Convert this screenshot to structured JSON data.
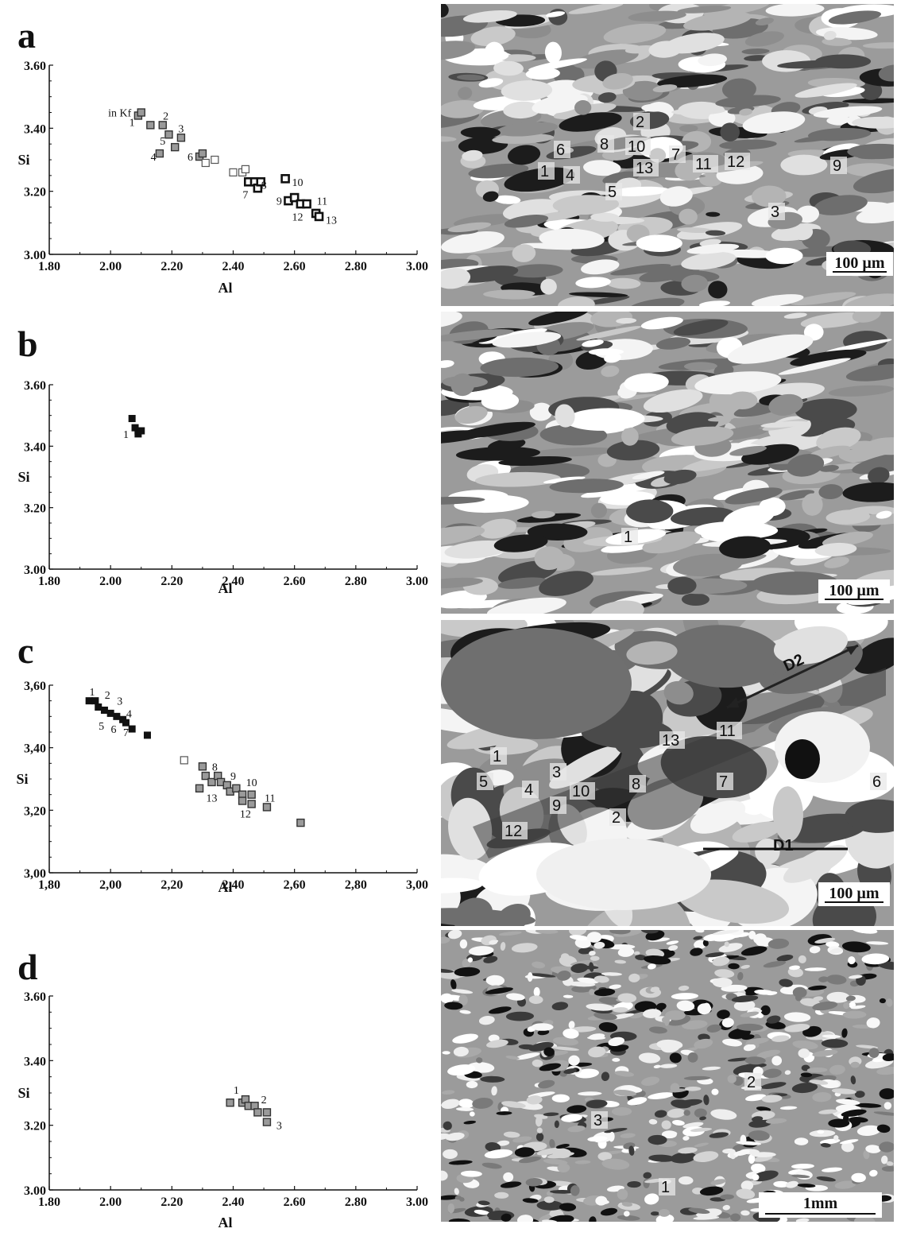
{
  "chart_data": [
    {
      "panel": "a",
      "type": "scatter",
      "xlabel": "Al",
      "ylabel": "Si",
      "xlim": [
        1.8,
        3.0
      ],
      "ylim": [
        3.0,
        3.6
      ],
      "x_ticks": [
        "1.80",
        "2.00",
        "2.20",
        "2.40",
        "2.60",
        "2.80",
        "3.00"
      ],
      "y_ticks": [
        "3.00",
        "3.20",
        "3.40",
        "3.60"
      ],
      "annotation": "in Kf",
      "points": [
        {
          "x": 2.09,
          "y": 3.44,
          "style": "grey"
        },
        {
          "x": 2.1,
          "y": 3.45,
          "style": "grey"
        },
        {
          "x": 2.13,
          "y": 3.41,
          "style": "grey"
        },
        {
          "x": 2.17,
          "y": 3.41,
          "style": "grey"
        },
        {
          "x": 2.19,
          "y": 3.38,
          "style": "grey"
        },
        {
          "x": 2.16,
          "y": 3.32,
          "style": "grey"
        },
        {
          "x": 2.21,
          "y": 3.34,
          "style": "grey"
        },
        {
          "x": 2.23,
          "y": 3.37,
          "style": "grey"
        },
        {
          "x": 2.29,
          "y": 3.31,
          "style": "grey"
        },
        {
          "x": 2.3,
          "y": 3.32,
          "style": "grey"
        },
        {
          "x": 2.31,
          "y": 3.29,
          "style": "open"
        },
        {
          "x": 2.34,
          "y": 3.3,
          "style": "open"
        },
        {
          "x": 2.4,
          "y": 3.26,
          "style": "open"
        },
        {
          "x": 2.43,
          "y": 3.26,
          "style": "open"
        },
        {
          "x": 2.44,
          "y": 3.27,
          "style": "open"
        },
        {
          "x": 2.45,
          "y": 3.23,
          "style": "heavy"
        },
        {
          "x": 2.47,
          "y": 3.23,
          "style": "heavy"
        },
        {
          "x": 2.48,
          "y": 3.21,
          "style": "heavy"
        },
        {
          "x": 2.49,
          "y": 3.23,
          "style": "heavy"
        },
        {
          "x": 2.57,
          "y": 3.24,
          "style": "heavy"
        },
        {
          "x": 2.58,
          "y": 3.17,
          "style": "heavy"
        },
        {
          "x": 2.6,
          "y": 3.18,
          "style": "heavy"
        },
        {
          "x": 2.62,
          "y": 3.16,
          "style": "heavy"
        },
        {
          "x": 2.64,
          "y": 3.16,
          "style": "heavy"
        },
        {
          "x": 2.67,
          "y": 3.13,
          "style": "heavy"
        },
        {
          "x": 2.68,
          "y": 3.12,
          "style": "heavy"
        }
      ],
      "point_labels": [
        {
          "text": "1",
          "x": 2.07,
          "y": 3.42
        },
        {
          "text": "2",
          "x": 2.18,
          "y": 3.44
        },
        {
          "text": "3",
          "x": 2.23,
          "y": 3.4
        },
        {
          "text": "5",
          "x": 2.17,
          "y": 3.36
        },
        {
          "text": "4",
          "x": 2.14,
          "y": 3.31
        },
        {
          "text": "6",
          "x": 2.26,
          "y": 3.31
        },
        {
          "text": "7",
          "x": 2.44,
          "y": 3.19
        },
        {
          "text": "8",
          "x": 2.5,
          "y": 3.22
        },
        {
          "text": "9",
          "x": 2.55,
          "y": 3.17
        },
        {
          "text": "10",
          "x": 2.61,
          "y": 3.23
        },
        {
          "text": "11",
          "x": 2.69,
          "y": 3.17
        },
        {
          "text": "12",
          "x": 2.61,
          "y": 3.12
        },
        {
          "text": "13",
          "x": 2.72,
          "y": 3.11
        }
      ]
    },
    {
      "panel": "b",
      "type": "scatter",
      "xlabel": "Al",
      "ylabel": "Si",
      "xlim": [
        1.8,
        3.0
      ],
      "ylim": [
        3.0,
        3.6
      ],
      "x_ticks": [
        "1.80",
        "2.00",
        "2.20",
        "2.40",
        "2.60",
        "2.80",
        "3.00"
      ],
      "y_ticks": [
        "3.00",
        "3.20",
        "3.40",
        "3.60"
      ],
      "points": [
        {
          "x": 2.07,
          "y": 3.49,
          "style": "solid"
        },
        {
          "x": 2.08,
          "y": 3.46,
          "style": "solid"
        },
        {
          "x": 2.09,
          "y": 3.45,
          "style": "solid"
        },
        {
          "x": 2.09,
          "y": 3.44,
          "style": "solid"
        },
        {
          "x": 2.1,
          "y": 3.45,
          "style": "solid"
        }
      ],
      "point_labels": [
        {
          "text": "1",
          "x": 2.05,
          "y": 3.44
        }
      ]
    },
    {
      "panel": "c",
      "type": "scatter",
      "xlabel": "Al",
      "ylabel": "Si",
      "xlim": [
        1.8,
        3.0
      ],
      "ylim": [
        3.0,
        3.6
      ],
      "x_ticks": [
        "1,80",
        "2,00",
        "2,20",
        "2,40",
        "2,60",
        "2,80",
        "3,00"
      ],
      "y_ticks": [
        "3,00",
        "3,20",
        "3,40",
        "3,60"
      ],
      "points": [
        {
          "x": 1.93,
          "y": 3.55,
          "style": "solid"
        },
        {
          "x": 1.95,
          "y": 3.55,
          "style": "solid"
        },
        {
          "x": 1.96,
          "y": 3.53,
          "style": "solid"
        },
        {
          "x": 1.98,
          "y": 3.52,
          "style": "solid"
        },
        {
          "x": 2.0,
          "y": 3.51,
          "style": "solid"
        },
        {
          "x": 2.02,
          "y": 3.5,
          "style": "solid"
        },
        {
          "x": 2.04,
          "y": 3.49,
          "style": "solid"
        },
        {
          "x": 2.05,
          "y": 3.48,
          "style": "solid"
        },
        {
          "x": 2.07,
          "y": 3.46,
          "style": "solid"
        },
        {
          "x": 2.12,
          "y": 3.44,
          "style": "solid"
        },
        {
          "x": 2.24,
          "y": 3.36,
          "style": "open"
        },
        {
          "x": 2.3,
          "y": 3.34,
          "style": "grey"
        },
        {
          "x": 2.31,
          "y": 3.31,
          "style": "grey"
        },
        {
          "x": 2.33,
          "y": 3.29,
          "style": "grey"
        },
        {
          "x": 2.35,
          "y": 3.31,
          "style": "grey"
        },
        {
          "x": 2.36,
          "y": 3.29,
          "style": "grey"
        },
        {
          "x": 2.38,
          "y": 3.28,
          "style": "grey"
        },
        {
          "x": 2.39,
          "y": 3.26,
          "style": "grey"
        },
        {
          "x": 2.41,
          "y": 3.27,
          "style": "grey"
        },
        {
          "x": 2.43,
          "y": 3.25,
          "style": "grey"
        },
        {
          "x": 2.43,
          "y": 3.23,
          "style": "grey"
        },
        {
          "x": 2.46,
          "y": 3.25,
          "style": "grey"
        },
        {
          "x": 2.46,
          "y": 3.22,
          "style": "grey"
        },
        {
          "x": 2.29,
          "y": 3.27,
          "style": "grey"
        },
        {
          "x": 2.51,
          "y": 3.21,
          "style": "grey"
        },
        {
          "x": 2.62,
          "y": 3.16,
          "style": "grey"
        }
      ],
      "point_labels": [
        {
          "text": "1",
          "x": 1.94,
          "y": 3.58
        },
        {
          "text": "2",
          "x": 1.99,
          "y": 3.57
        },
        {
          "text": "3",
          "x": 2.03,
          "y": 3.55
        },
        {
          "text": "4",
          "x": 2.06,
          "y": 3.51
        },
        {
          "text": "5",
          "x": 1.97,
          "y": 3.47
        },
        {
          "text": "6",
          "x": 2.01,
          "y": 3.46
        },
        {
          "text": "7",
          "x": 2.05,
          "y": 3.45
        },
        {
          "text": "8",
          "x": 2.34,
          "y": 3.34
        },
        {
          "text": "9",
          "x": 2.4,
          "y": 3.31
        },
        {
          "text": "10",
          "x": 2.46,
          "y": 3.29
        },
        {
          "text": "11",
          "x": 2.52,
          "y": 3.24
        },
        {
          "text": "12",
          "x": 2.44,
          "y": 3.19
        },
        {
          "text": "13",
          "x": 2.33,
          "y": 3.24
        }
      ]
    },
    {
      "panel": "d",
      "type": "scatter",
      "xlabel": "Al",
      "ylabel": "Si",
      "xlim": [
        1.8,
        3.0
      ],
      "ylim": [
        3.0,
        3.6
      ],
      "x_ticks": [
        "1.80",
        "2.00",
        "2.20",
        "2.40",
        "2.60",
        "2.80",
        "3.00"
      ],
      "y_ticks": [
        "3.00",
        "3.20",
        "3.40",
        "3.60"
      ],
      "points": [
        {
          "x": 2.39,
          "y": 3.27,
          "style": "grey"
        },
        {
          "x": 2.43,
          "y": 3.27,
          "style": "grey"
        },
        {
          "x": 2.44,
          "y": 3.28,
          "style": "grey"
        },
        {
          "x": 2.45,
          "y": 3.26,
          "style": "grey"
        },
        {
          "x": 2.47,
          "y": 3.26,
          "style": "grey"
        },
        {
          "x": 2.48,
          "y": 3.24,
          "style": "grey"
        },
        {
          "x": 2.51,
          "y": 3.24,
          "style": "grey"
        },
        {
          "x": 2.51,
          "y": 3.21,
          "style": "grey"
        }
      ],
      "point_labels": [
        {
          "text": "1",
          "x": 2.41,
          "y": 3.31
        },
        {
          "text": "2",
          "x": 2.5,
          "y": 3.28
        },
        {
          "text": "3",
          "x": 2.55,
          "y": 3.2
        }
      ]
    }
  ],
  "panels": {
    "a": {
      "letter": "a",
      "scale_label": "100 µm",
      "mineral_labels": [
        "2",
        "6",
        "8",
        "10",
        "7",
        "11",
        "12",
        "9",
        "1",
        "4",
        "13",
        "5",
        "3"
      ]
    },
    "b": {
      "letter": "b",
      "scale_label": "100 µm",
      "mineral_labels": [
        "1"
      ]
    },
    "c": {
      "letter": "c",
      "scale_label": "100 µm",
      "mineral_labels": [
        "D2",
        "11",
        "13",
        "1",
        "3",
        "5",
        "4",
        "10",
        "8",
        "7",
        "6",
        "9",
        "2",
        "12",
        "D1"
      ]
    },
    "d": {
      "letter": "d",
      "scale_label": "1mm",
      "mineral_labels": [
        "2",
        "3",
        "1"
      ]
    }
  },
  "colors": {
    "solid": "#111111",
    "grey": "#9a9a9a",
    "open": "#ffffff"
  }
}
